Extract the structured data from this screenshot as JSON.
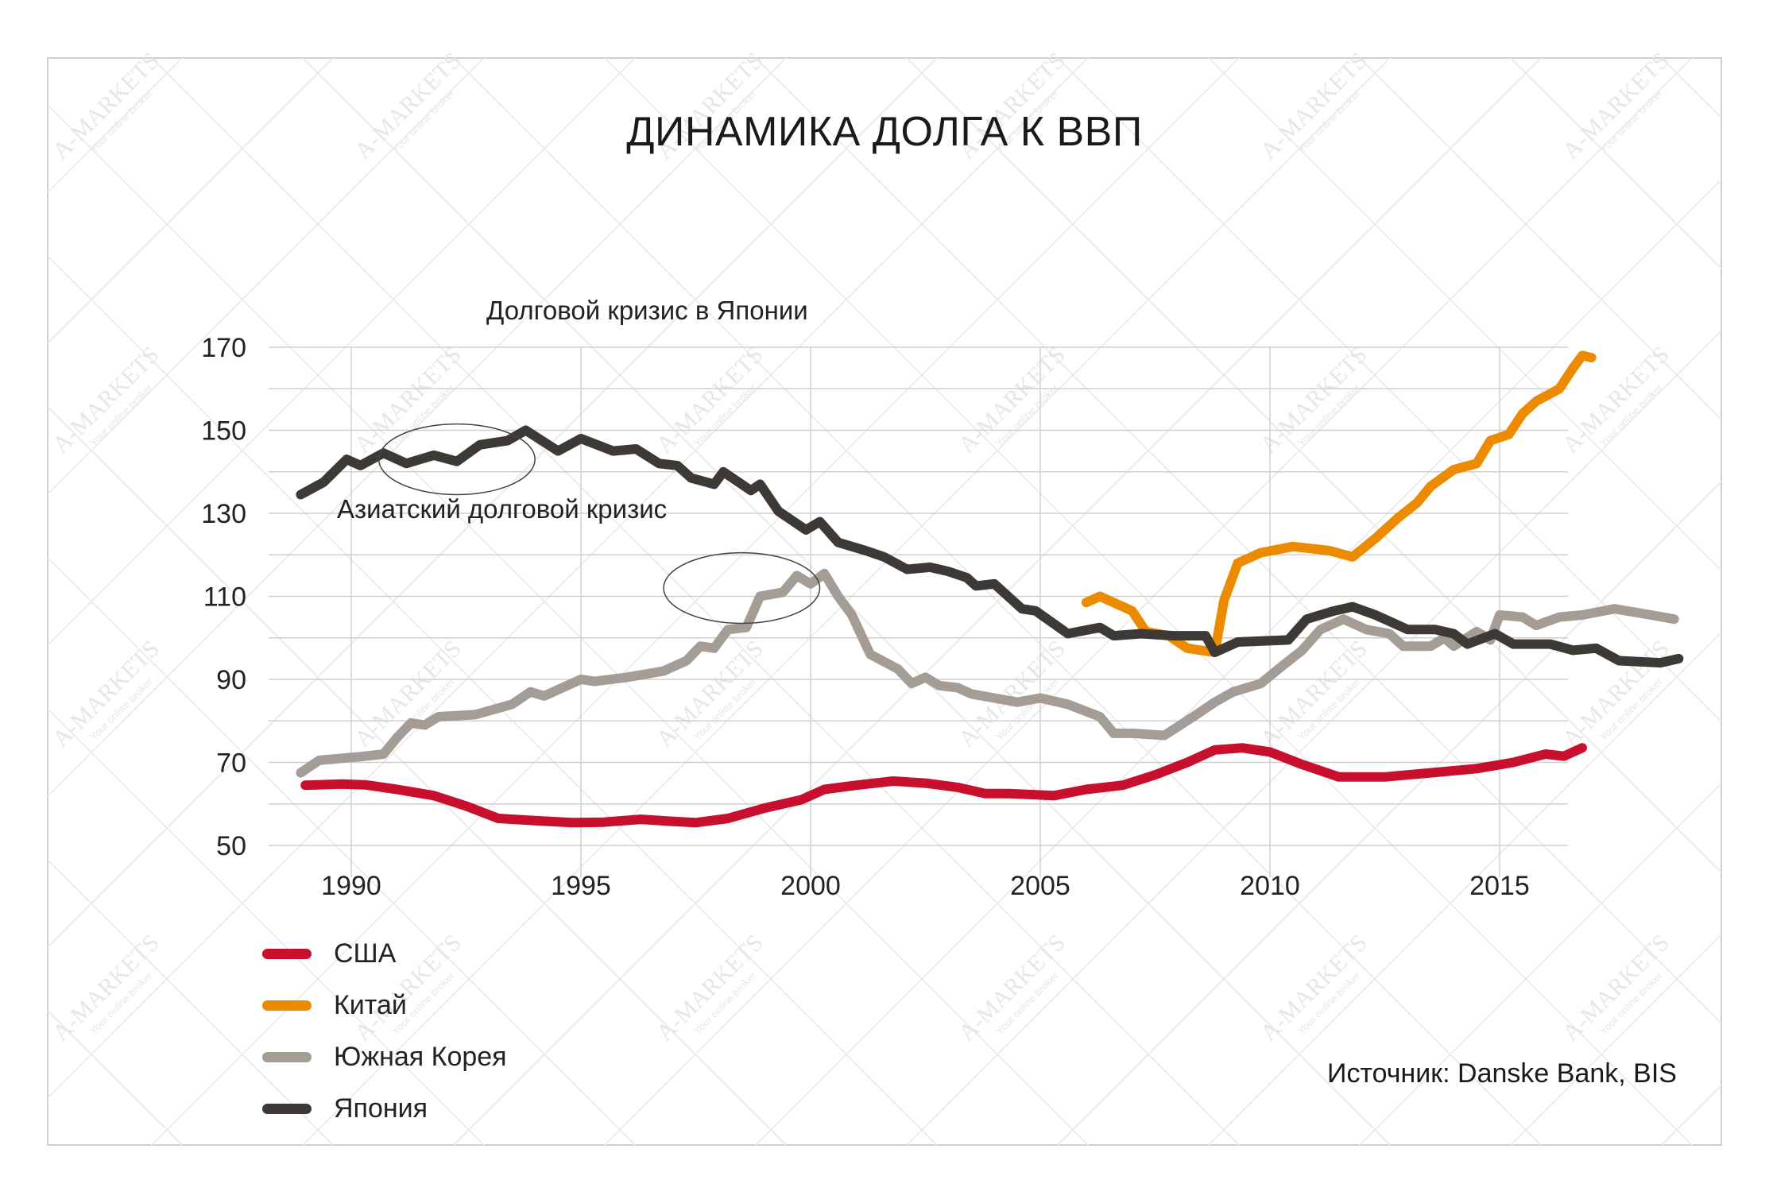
{
  "title": "ДИНАМИКА ДОЛГА К ВВП",
  "source": "Источник: Danske Bank, BIS",
  "watermark": {
    "brand": "A-MARKETS",
    "tagline": "Your online broker"
  },
  "annotations": [
    {
      "name": "japan-crisis",
      "text": "Долговой кризис в Японии",
      "x": 1992.3,
      "y": 143,
      "rx": 1.7,
      "ry": 8.5
    },
    {
      "name": "asian-crisis",
      "text": "Азиатский долговой кризис",
      "x": 1998.5,
      "y": 112,
      "rx": 1.7,
      "ry": 8.5
    }
  ],
  "chart_data": {
    "type": "line",
    "title": "ДИНАМИКА ДОЛГА К ВВП",
    "xlabel": "",
    "ylabel": "",
    "xlim": [
      1987.5,
      2017
    ],
    "ylim": [
      50,
      170
    ],
    "xticks": [
      1990,
      1995,
      2000,
      2005,
      2010,
      2015
    ],
    "yticks": [
      50,
      70,
      90,
      110,
      130,
      150,
      170
    ],
    "grid": true,
    "legend_position": "bottom-left",
    "series": [
      {
        "name": "США",
        "color": "#c8102e",
        "points": [
          [
            1989.0,
            64.5
          ],
          [
            1989.8,
            64.8
          ],
          [
            1990.3,
            64.6
          ],
          [
            1991.0,
            63.5
          ],
          [
            1991.8,
            62.0
          ],
          [
            1992.5,
            59.5
          ],
          [
            1993.2,
            56.5
          ],
          [
            1994.0,
            56.0
          ],
          [
            1994.8,
            55.5
          ],
          [
            1995.5,
            55.6
          ],
          [
            1996.3,
            56.3
          ],
          [
            1997.0,
            55.8
          ],
          [
            1997.5,
            55.5
          ],
          [
            1998.2,
            56.5
          ],
          [
            1999.0,
            59.0
          ],
          [
            1999.8,
            61.0
          ],
          [
            2000.3,
            63.5
          ],
          [
            2001.0,
            64.5
          ],
          [
            2001.8,
            65.5
          ],
          [
            2002.5,
            65.0
          ],
          [
            2003.2,
            64.0
          ],
          [
            2003.8,
            62.5
          ],
          [
            2004.3,
            62.5
          ],
          [
            2005.3,
            62.0
          ],
          [
            2006.0,
            63.5
          ],
          [
            2006.8,
            64.5
          ],
          [
            2007.5,
            67.0
          ],
          [
            2008.2,
            70.0
          ],
          [
            2008.8,
            73.0
          ],
          [
            2009.4,
            73.5
          ],
          [
            2010.0,
            72.5
          ],
          [
            2010.7,
            69.5
          ],
          [
            2011.5,
            66.5
          ],
          [
            2012.5,
            66.5
          ],
          [
            2013.5,
            67.5
          ],
          [
            2014.5,
            68.5
          ],
          [
            2015.3,
            70.0
          ],
          [
            2016.0,
            72.0
          ],
          [
            2016.4,
            71.5
          ],
          [
            2016.8,
            73.5
          ]
        ]
      },
      {
        "name": "Китай",
        "color": "#ed8b00",
        "points": [
          [
            2006.0,
            108.5
          ],
          [
            2006.3,
            110.0
          ],
          [
            2006.7,
            108.0
          ],
          [
            2007.0,
            106.5
          ],
          [
            2007.3,
            101.5
          ],
          [
            2007.8,
            100.5
          ],
          [
            2008.2,
            97.5
          ],
          [
            2008.8,
            96.5
          ],
          [
            2009.0,
            109.0
          ],
          [
            2009.3,
            118.0
          ],
          [
            2009.8,
            120.5
          ],
          [
            2010.5,
            122.0
          ],
          [
            2011.3,
            121.0
          ],
          [
            2011.8,
            119.5
          ],
          [
            2012.3,
            124.0
          ],
          [
            2012.8,
            129.0
          ],
          [
            2013.2,
            132.5
          ],
          [
            2013.5,
            136.5
          ],
          [
            2014.0,
            140.5
          ],
          [
            2014.5,
            142.0
          ],
          [
            2014.8,
            147.5
          ],
          [
            2015.2,
            149.0
          ],
          [
            2015.5,
            154.0
          ],
          [
            2015.8,
            157.0
          ],
          [
            2016.3,
            160.0
          ],
          [
            2016.6,
            165.0
          ],
          [
            2016.8,
            168.0
          ],
          [
            2017.0,
            167.5
          ]
        ]
      },
      {
        "name": "Южная Корея",
        "color": "#a39d96",
        "points": [
          [
            1988.9,
            67.5
          ],
          [
            1989.3,
            70.5
          ],
          [
            1989.8,
            71.0
          ],
          [
            1990.3,
            71.5
          ],
          [
            1990.7,
            72.0
          ],
          [
            1991.0,
            76.0
          ],
          [
            1991.3,
            79.5
          ],
          [
            1991.6,
            79.0
          ],
          [
            1991.9,
            81.0
          ],
          [
            1992.7,
            81.5
          ],
          [
            1993.5,
            84.0
          ],
          [
            1993.9,
            87.0
          ],
          [
            1994.2,
            86.0
          ],
          [
            1995.0,
            90.0
          ],
          [
            1995.3,
            89.5
          ],
          [
            1996.0,
            90.5
          ],
          [
            1996.8,
            92.0
          ],
          [
            1997.3,
            94.5
          ],
          [
            1997.6,
            98.0
          ],
          [
            1997.9,
            97.5
          ],
          [
            1998.2,
            102.0
          ],
          [
            1998.6,
            102.5
          ],
          [
            1998.9,
            110.0
          ],
          [
            1999.4,
            111.0
          ],
          [
            1999.7,
            115.0
          ],
          [
            2000.0,
            113.0
          ],
          [
            2000.3,
            115.5
          ],
          [
            2000.6,
            110.0
          ],
          [
            2000.9,
            105.5
          ],
          [
            2001.3,
            96.0
          ],
          [
            2001.9,
            92.5
          ],
          [
            2002.2,
            89.0
          ],
          [
            2002.5,
            90.5
          ],
          [
            2002.8,
            88.5
          ],
          [
            2003.2,
            88.0
          ],
          [
            2003.5,
            86.5
          ],
          [
            2004.0,
            85.5
          ],
          [
            2004.5,
            84.5
          ],
          [
            2005.0,
            85.5
          ],
          [
            2005.6,
            84.0
          ],
          [
            2006.3,
            81.0
          ],
          [
            2006.6,
            77.0
          ],
          [
            2007.0,
            77.0
          ],
          [
            2007.7,
            76.5
          ],
          [
            2008.4,
            81.5
          ],
          [
            2008.8,
            84.5
          ],
          [
            2009.2,
            87.0
          ],
          [
            2009.8,
            89.0
          ],
          [
            2010.3,
            93.5
          ],
          [
            2010.7,
            97.0
          ],
          [
            2011.1,
            102.0
          ],
          [
            2011.6,
            104.5
          ],
          [
            2012.1,
            102.0
          ],
          [
            2012.6,
            101.0
          ],
          [
            2012.9,
            98.0
          ],
          [
            2013.5,
            98.0
          ],
          [
            2013.8,
            100.0
          ],
          [
            2014.0,
            98.0
          ],
          [
            2014.5,
            101.5
          ],
          [
            2014.8,
            99.5
          ],
          [
            2015.0,
            105.5
          ],
          [
            2015.5,
            105.0
          ],
          [
            2015.8,
            103.0
          ],
          [
            2016.3,
            105.0
          ],
          [
            2016.8,
            105.5
          ],
          [
            2017.5,
            107.0
          ],
          [
            2018.3,
            105.5
          ],
          [
            2018.8,
            104.5
          ]
        ]
      },
      {
        "name": "Япония",
        "color": "#3d3935",
        "points": [
          [
            1988.9,
            134.5
          ],
          [
            1989.4,
            137.5
          ],
          [
            1989.9,
            143.0
          ],
          [
            1990.2,
            141.5
          ],
          [
            1990.7,
            144.5
          ],
          [
            1991.2,
            142.0
          ],
          [
            1991.8,
            144.0
          ],
          [
            1992.3,
            142.5
          ],
          [
            1992.8,
            146.5
          ],
          [
            1993.4,
            147.5
          ],
          [
            1993.8,
            150.0
          ],
          [
            1994.5,
            145.0
          ],
          [
            1995.0,
            148.0
          ],
          [
            1995.7,
            145.0
          ],
          [
            1996.2,
            145.5
          ],
          [
            1996.7,
            142.0
          ],
          [
            1997.1,
            141.5
          ],
          [
            1997.4,
            138.5
          ],
          [
            1997.9,
            137.0
          ],
          [
            1998.1,
            140.0
          ],
          [
            1998.7,
            135.5
          ],
          [
            1998.9,
            137.0
          ],
          [
            1999.3,
            130.5
          ],
          [
            1999.9,
            126.0
          ],
          [
            2000.2,
            128.0
          ],
          [
            2000.6,
            123.0
          ],
          [
            2001.2,
            121.0
          ],
          [
            2001.6,
            119.5
          ],
          [
            2002.1,
            116.5
          ],
          [
            2002.6,
            117.0
          ],
          [
            2003.0,
            116.0
          ],
          [
            2003.4,
            114.5
          ],
          [
            2003.6,
            112.5
          ],
          [
            2004.0,
            113.0
          ],
          [
            2004.6,
            107.0
          ],
          [
            2004.9,
            106.5
          ],
          [
            2005.6,
            101.0
          ],
          [
            2006.3,
            102.5
          ],
          [
            2006.6,
            100.5
          ],
          [
            2007.2,
            101.0
          ],
          [
            2007.9,
            100.5
          ],
          [
            2008.6,
            100.5
          ],
          [
            2008.8,
            96.5
          ],
          [
            2009.3,
            99.0
          ],
          [
            2010.4,
            99.5
          ],
          [
            2010.8,
            104.5
          ],
          [
            2011.4,
            106.5
          ],
          [
            2011.8,
            107.5
          ],
          [
            2012.3,
            105.5
          ],
          [
            2013.0,
            102.0
          ],
          [
            2013.6,
            102.0
          ],
          [
            2014.0,
            101.0
          ],
          [
            2014.3,
            98.5
          ],
          [
            2014.9,
            101.0
          ],
          [
            2015.3,
            98.5
          ],
          [
            2016.1,
            98.5
          ],
          [
            2016.6,
            97.0
          ],
          [
            2017.1,
            97.5
          ],
          [
            2017.6,
            94.5
          ],
          [
            2018.5,
            94.0
          ],
          [
            2018.9,
            95.0
          ]
        ]
      }
    ]
  }
}
